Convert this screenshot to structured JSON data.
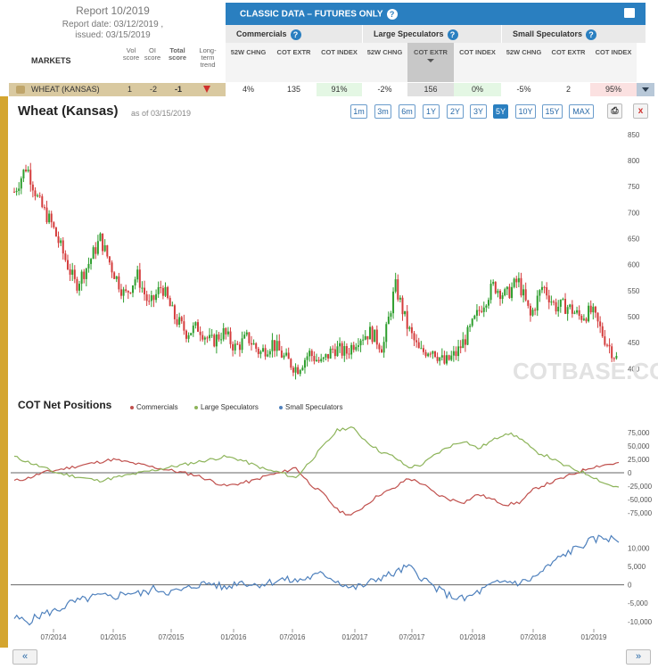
{
  "report": {
    "title": "Report 10/2019",
    "date": "Report date: 03/12/2019 ,",
    "issued": "issued: 03/15/2019"
  },
  "columns": {
    "markets": "MARKETS",
    "vol_score": "Vol score",
    "oi_score": "OI score",
    "total_score": "Total score",
    "long_term_trend": "Long-term trend"
  },
  "classic": {
    "title": "CLASSIC DATA – FUTURES ONLY",
    "help_icon": "question-icon",
    "print_icon": "printer-icon",
    "groups": [
      "Commercials",
      "Large Speculators",
      "Small Speculators"
    ],
    "sub_headers": [
      "52W CHNG",
      "COT EXTR",
      "COT INDEX",
      "52W CHNG",
      "COT EXTR",
      "COT INDEX",
      "52W CHNG",
      "COT EXTR",
      "COT INDEX"
    ]
  },
  "row": {
    "market": "WHEAT (KANSAS)",
    "vol_score": "1",
    "oi_score": "-2",
    "total_score": "-1",
    "trend": "down",
    "values": [
      "4%",
      "135",
      "91%",
      "-2%",
      "156",
      "0%",
      "-5%",
      "2",
      "95%"
    ],
    "colors": {
      "green": "#e4f7e4",
      "red": "#fbe1e1"
    }
  },
  "chart_header": {
    "title": "Wheat (Kansas)",
    "asof": "as of 03/15/2019",
    "ranges": [
      "1m",
      "3m",
      "6m",
      "1Y",
      "2Y",
      "3Y",
      "5Y",
      "10Y",
      "15Y",
      "MAX"
    ],
    "active_range": "5Y",
    "print_icon": "printer-icon",
    "close_label": "x"
  },
  "chart_data": [
    {
      "type": "candlestick",
      "title": "Wheat (Kansas)",
      "ylim": [
        375,
        860
      ],
      "y_ticks": [
        "850",
        "800",
        "750",
        "700",
        "650",
        "600",
        "550",
        "500",
        "450",
        "400"
      ],
      "x_ticks": [
        "07/2014",
        "01/2015",
        "07/2015",
        "01/2016",
        "07/2016",
        "01/2017",
        "07/2017",
        "01/2018",
        "07/2018",
        "01/2019"
      ],
      "close_series": [
        740,
        790,
        720,
        680,
        620,
        560,
        600,
        650,
        590,
        540,
        580,
        520,
        560,
        500,
        470,
        480,
        450,
        470,
        440,
        460,
        430,
        450,
        420,
        400,
        430,
        410,
        440,
        430,
        460,
        470,
        440,
        560,
        480,
        430,
        440,
        410,
        430,
        470,
        520,
        560,
        540,
        570,
        500,
        560,
        520,
        520,
        500,
        510,
        460,
        420
      ],
      "colors": {
        "up": "#2e9e2e",
        "down": "#d43c3c"
      },
      "watermark": "COTBASE.COM"
    },
    {
      "type": "line",
      "title": "COT Net Positions",
      "legend": [
        "Commercials",
        "Large Speculators",
        "Small Speculators"
      ],
      "colors": {
        "commercials": "#c0504d",
        "large_speculators": "#8db45a",
        "small_speculators": "#4f81bd"
      },
      "ylim": [
        -100000,
        100000
      ],
      "y_ticks": [
        "75,000",
        "50,000",
        "25,000",
        "0",
        "-25,000",
        "-50,000",
        "-75,000"
      ],
      "commercials": [
        -15000,
        -10000,
        0,
        5000,
        10000,
        15000,
        20000,
        25000,
        20000,
        15000,
        10000,
        5000,
        0,
        -5000,
        -15000,
        -25000,
        -20000,
        -15000,
        -5000,
        0,
        10000,
        -20000,
        -40000,
        -70000,
        -80000,
        -60000,
        -40000,
        -30000,
        -10000,
        -20000,
        -40000,
        -50000,
        -55000,
        -40000,
        -50000,
        -60000,
        -55000,
        -30000,
        -20000,
        -10000,
        0,
        10000,
        15000,
        18000
      ],
      "large_speculators": [
        30000,
        20000,
        10000,
        0,
        -5000,
        -10000,
        -15000,
        -10000,
        -5000,
        0,
        5000,
        10000,
        15000,
        20000,
        25000,
        30000,
        25000,
        15000,
        5000,
        0,
        -10000,
        20000,
        50000,
        80000,
        85000,
        60000,
        40000,
        30000,
        10000,
        15000,
        35000,
        50000,
        60000,
        45000,
        60000,
        75000,
        65000,
        40000,
        30000,
        15000,
        5000,
        -5000,
        -20000,
        -28000
      ],
      "small_speculators": [
        -9000,
        -10000,
        -8000,
        -7000,
        -5000,
        -4000,
        -3000,
        -3500,
        -2000,
        -2500,
        -1000,
        -2000,
        -1500,
        0,
        500,
        -1000,
        1000,
        0,
        500,
        1500,
        1000,
        2000,
        3000,
        1000,
        -1000,
        0,
        2000,
        3000,
        5000,
        2000,
        -1000,
        -3000,
        -4000,
        -2000,
        0,
        1000,
        500,
        2000,
        5000,
        8000,
        10000,
        12000,
        13000,
        12000
      ]
    }
  ],
  "cot": {
    "title": "COT Net Positions",
    "legend": [
      "Commercials",
      "Large Speculators",
      "Small Speculators"
    ],
    "small_y_ticks": [
      "10,000",
      "5,000",
      "0",
      "-5,000",
      "-10,000"
    ]
  },
  "nav": {
    "prev": "«",
    "next": "»"
  }
}
